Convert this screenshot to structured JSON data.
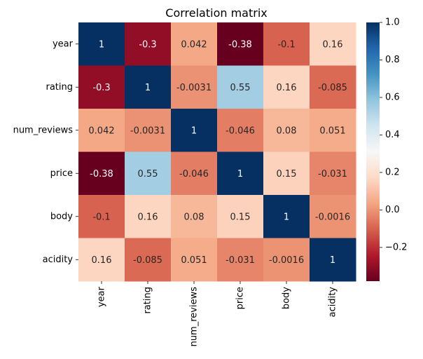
{
  "chart_data": {
    "type": "heatmap",
    "title": "Correlation matrix",
    "x_labels": [
      "year",
      "rating",
      "num_reviews",
      "price",
      "body",
      "acidity"
    ],
    "y_labels": [
      "year",
      "rating",
      "num_reviews",
      "price",
      "body",
      "acidity"
    ],
    "values": [
      [
        1,
        -0.3,
        0.042,
        -0.38,
        -0.1,
        0.16
      ],
      [
        -0.3,
        1,
        -0.0031,
        0.55,
        0.16,
        -0.085
      ],
      [
        0.042,
        -0.0031,
        1,
        -0.046,
        0.08,
        0.051
      ],
      [
        -0.38,
        0.55,
        -0.046,
        1,
        0.15,
        -0.031
      ],
      [
        -0.1,
        0.16,
        0.08,
        0.15,
        1,
        -0.0016
      ],
      [
        0.16,
        -0.085,
        0.051,
        -0.031,
        -0.0016,
        1
      ]
    ],
    "cell_labels": [
      [
        "1",
        "-0.3",
        "0.042",
        "-0.38",
        "-0.1",
        "0.16"
      ],
      [
        "-0.3",
        "1",
        "-0.0031",
        "0.55",
        "0.16",
        "-0.085"
      ],
      [
        "0.042",
        "-0.0031",
        "1",
        "-0.046",
        "0.08",
        "0.051"
      ],
      [
        "-0.38",
        "0.55",
        "-0.046",
        "1",
        "0.15",
        "-0.031"
      ],
      [
        "-0.1",
        "0.16",
        "0.08",
        "0.15",
        "1",
        "-0.0016"
      ],
      [
        "0.16",
        "-0.085",
        "0.051",
        "-0.031",
        "-0.0016",
        "1"
      ]
    ],
    "colormap": "RdBu",
    "vmin": -0.38,
    "vmax": 1,
    "colorbar_ticks": [
      -0.2,
      0.0,
      0.2,
      0.4,
      0.6,
      0.8,
      1.0
    ],
    "colorbar_tick_labels": [
      "−0.2",
      "0.0",
      "0.2",
      "0.4",
      "0.6",
      "0.8",
      "1.0"
    ],
    "colorbar_position": "right",
    "grid": false
  }
}
